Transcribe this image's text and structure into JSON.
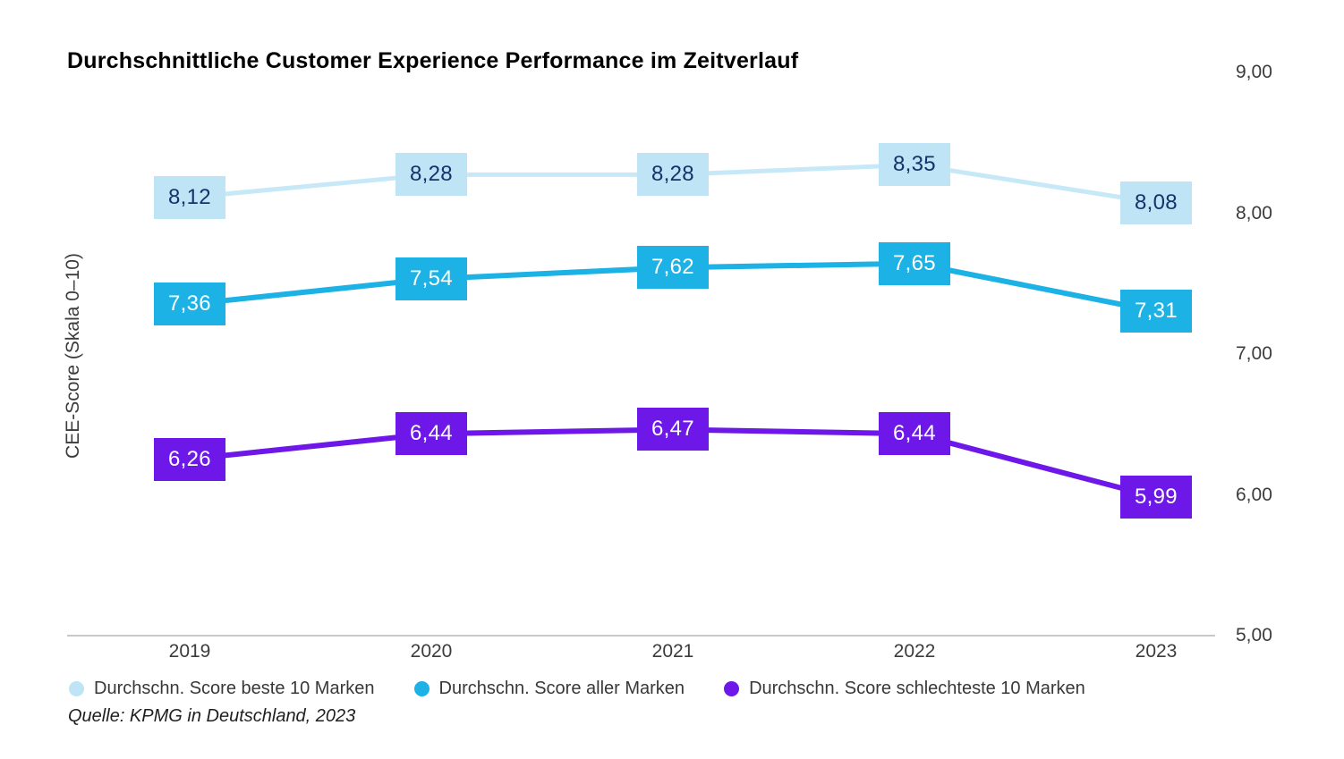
{
  "title": "Durchschnittliche Customer Experience Performance im Zeitverlauf",
  "y_axis_label": "CEE-Score (Skala 0–10)",
  "source": "Quelle: KPMG in Deutschland, 2023",
  "chart_data": {
    "type": "line",
    "title": "Durchschnittliche Customer Experience Performance im Zeitverlauf",
    "xlabel": "",
    "ylabel": "CEE-Score (Skala 0–10)",
    "categories": [
      "2019",
      "2020",
      "2021",
      "2022",
      "2023"
    ],
    "series": [
      {
        "name": "Durchschn. Score beste 10 Marken",
        "values": [
          8.12,
          8.28,
          8.28,
          8.35,
          8.08
        ],
        "labels": [
          "8,12",
          "8,28",
          "8,28",
          "8,35",
          "8,08"
        ],
        "box_color": "#bee4f5",
        "line_color": "#c7e9f7",
        "text_color": "#14336b",
        "line_width": 5
      },
      {
        "name": "Durchschn. Score aller Marken",
        "values": [
          7.36,
          7.54,
          7.62,
          7.65,
          7.31
        ],
        "labels": [
          "7,36",
          "7,54",
          "7,62",
          "7,65",
          "7,31"
        ],
        "box_color": "#1cb2e5",
        "line_color": "#1cb2e5",
        "text_color": "#ffffff",
        "line_width": 6
      },
      {
        "name": "Durchschn. Score schlechteste 10 Marken",
        "values": [
          6.26,
          6.44,
          6.47,
          6.44,
          5.99
        ],
        "labels": [
          "6,26",
          "6,44",
          "6,47",
          "6,44",
          "5,99"
        ],
        "box_color": "#6d18e8",
        "line_color": "#6d18e8",
        "text_color": "#ffffff",
        "line_width": 6
      }
    ],
    "y_ticks": [
      {
        "label": "9,00",
        "value": 9
      },
      {
        "label": "8,00",
        "value": 8
      },
      {
        "label": "7,00",
        "value": 7
      },
      {
        "label": "6,00",
        "value": 6
      },
      {
        "label": "5,00",
        "value": 5
      }
    ],
    "ylim": [
      5,
      9
    ],
    "grid": false,
    "legend_position": "bottom"
  }
}
